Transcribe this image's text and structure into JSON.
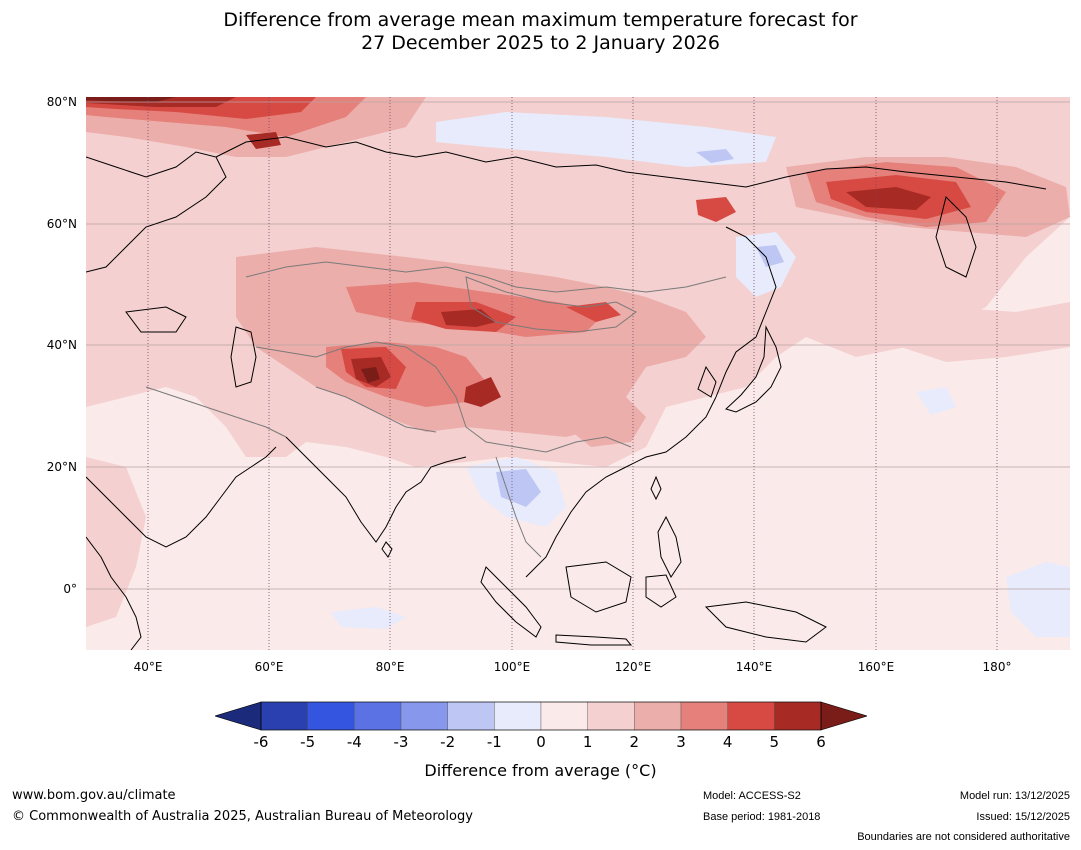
{
  "title": {
    "line1": "Difference from average mean maximum temperature forecast for",
    "line2": "27 December 2025 to 2 January 2026"
  },
  "map": {
    "lat_labels": [
      "80°N",
      "60°N",
      "40°N",
      "20°N",
      "0°"
    ],
    "lon_labels": [
      "40°E",
      "60°E",
      "80°E",
      "100°E",
      "120°E",
      "140°E",
      "160°E",
      "180°"
    ]
  },
  "legend": {
    "colors": [
      "#1b2a7a",
      "#2a3fb0",
      "#3355e0",
      "#5a72e4",
      "#8797eb",
      "#bec7f4",
      "#e7ebfb",
      "#fbeaea",
      "#f4d0d0",
      "#ecaeab",
      "#e5807a",
      "#d64a43",
      "#a82a24",
      "#7a1d18"
    ],
    "ticks": [
      "-6",
      "-5",
      "-4",
      "-3",
      "-2",
      "-1",
      "0",
      "1",
      "2",
      "3",
      "4",
      "5",
      "6"
    ],
    "label": "Difference from average (°C)"
  },
  "footer": {
    "website": "www.bom.gov.au/climate",
    "copyright": "© Commonwealth of Australia 2025, Australian Bureau of Meteorology",
    "model": "Model: ACCESS-S2",
    "base_period": "Base period: 1981-2018",
    "model_run": "Model run: 13/12/2025",
    "issued": "Issued: 15/12/2025",
    "disclaimer": "Boundaries are not considered authoritative"
  }
}
